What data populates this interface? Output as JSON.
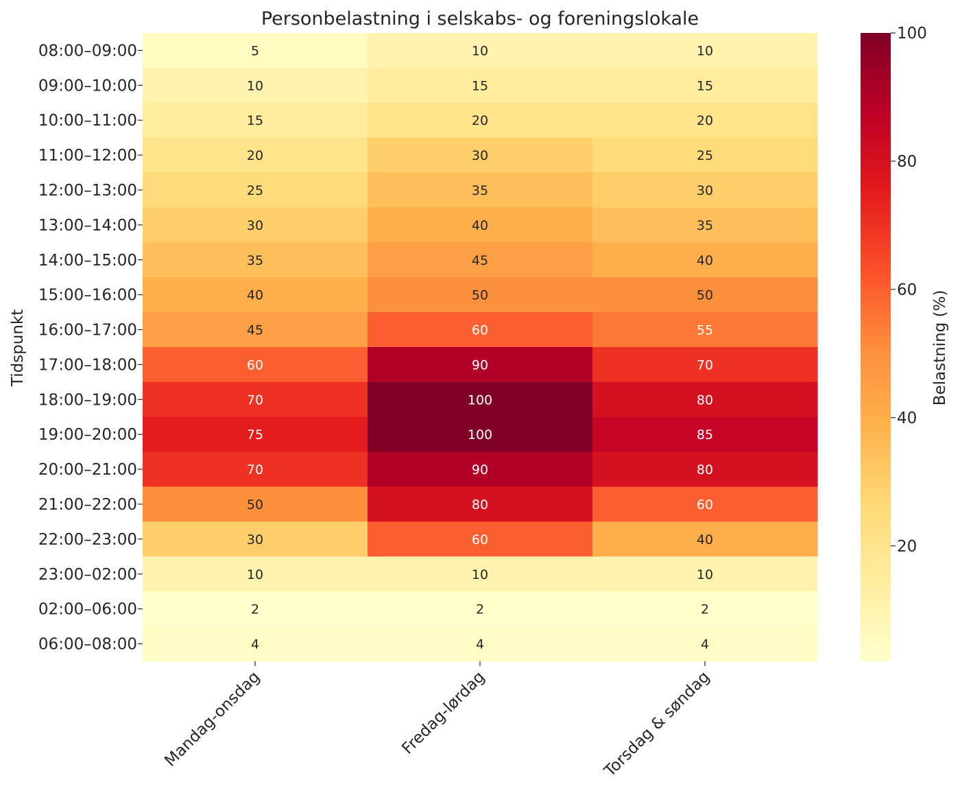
{
  "chart_data": {
    "type": "heatmap",
    "title": "Personbelastning i selskabs- og foreningslokale",
    "ylabel": "Tidspunkt",
    "xlabel": "",
    "colorbar_label": "Belastning (%)",
    "colorbar_range": [
      2,
      100
    ],
    "colorbar_ticks": [
      20,
      40,
      60,
      80,
      100
    ],
    "colormap": "YlOrRd",
    "annotated": true,
    "columns": [
      "Mandag-onsdag",
      "Fredag-lørdag",
      "Torsdag & søndag"
    ],
    "rows": [
      "08:00–09:00",
      "09:00–10:00",
      "10:00–11:00",
      "11:00–12:00",
      "12:00–13:00",
      "13:00–14:00",
      "14:00–15:00",
      "15:00–16:00",
      "16:00–17:00",
      "17:00–18:00",
      "18:00–19:00",
      "19:00–20:00",
      "20:00–21:00",
      "21:00–22:00",
      "22:00–23:00",
      "23:00–02:00",
      "02:00–06:00",
      "06:00–08:00"
    ],
    "values": [
      [
        5,
        10,
        10
      ],
      [
        10,
        15,
        15
      ],
      [
        15,
        20,
        20
      ],
      [
        20,
        30,
        25
      ],
      [
        25,
        35,
        30
      ],
      [
        30,
        40,
        35
      ],
      [
        35,
        45,
        40
      ],
      [
        40,
        50,
        50
      ],
      [
        45,
        60,
        55
      ],
      [
        60,
        90,
        70
      ],
      [
        70,
        100,
        80
      ],
      [
        75,
        100,
        85
      ],
      [
        70,
        90,
        80
      ],
      [
        50,
        80,
        60
      ],
      [
        30,
        60,
        40
      ],
      [
        10,
        10,
        10
      ],
      [
        2,
        2,
        2
      ],
      [
        4,
        4,
        4
      ]
    ]
  }
}
